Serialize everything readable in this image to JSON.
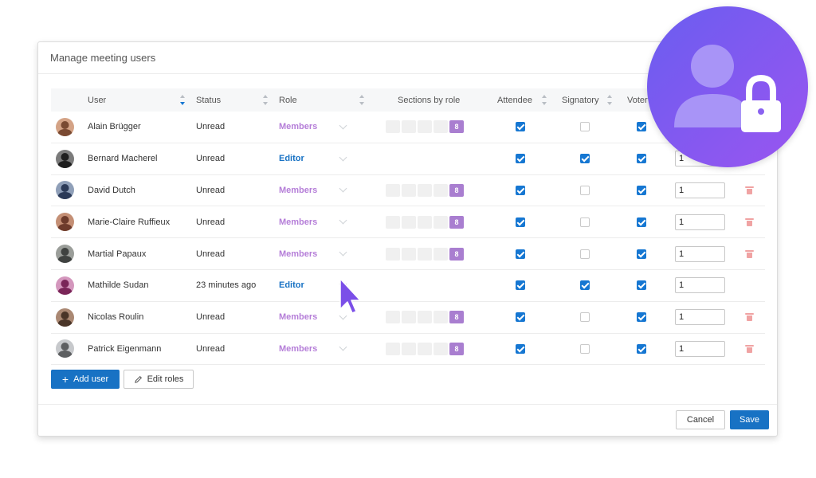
{
  "dialog": {
    "title": "Manage meeting users"
  },
  "columns": {
    "user": "User",
    "status": "Status",
    "role": "Role",
    "sections": "Sections by role",
    "attendee": "Attendee",
    "signatory": "Signatory",
    "voter": "Voter"
  },
  "rows": [
    {
      "name": "Alain Brügger",
      "status": "Unread",
      "role": "Members",
      "sections": "8",
      "attendee": true,
      "signatory": false,
      "voter": true,
      "weight": "",
      "deletable": false
    },
    {
      "name": "Bernard Macherel",
      "status": "Unread",
      "role": "Editor",
      "sections": "",
      "attendee": true,
      "signatory": true,
      "voter": true,
      "weight": "1",
      "deletable": false
    },
    {
      "name": "David Dutch",
      "status": "Unread",
      "role": "Members",
      "sections": "8",
      "attendee": true,
      "signatory": false,
      "voter": true,
      "weight": "1",
      "deletable": true
    },
    {
      "name": "Marie-Claire Ruffieux",
      "status": "Unread",
      "role": "Members",
      "sections": "8",
      "attendee": true,
      "signatory": false,
      "voter": true,
      "weight": "1",
      "deletable": true
    },
    {
      "name": "Martial Papaux",
      "status": "Unread",
      "role": "Members",
      "sections": "8",
      "attendee": true,
      "signatory": false,
      "voter": true,
      "weight": "1",
      "deletable": true
    },
    {
      "name": "Mathilde Sudan",
      "status": "23 minutes ago",
      "role": "Editor",
      "sections": "",
      "attendee": true,
      "signatory": true,
      "voter": true,
      "weight": "1",
      "deletable": false
    },
    {
      "name": "Nicolas Roulin",
      "status": "Unread",
      "role": "Members",
      "sections": "8",
      "attendee": true,
      "signatory": false,
      "voter": true,
      "weight": "1",
      "deletable": true
    },
    {
      "name": "Patrick Eigenmann",
      "status": "Unread",
      "role": "Members",
      "sections": "8",
      "attendee": true,
      "signatory": false,
      "voter": true,
      "weight": "1",
      "deletable": true
    }
  ],
  "actions": {
    "add_user": "Add user",
    "edit_roles": "Edit roles"
  },
  "footer": {
    "cancel": "Cancel",
    "save": "Save"
  },
  "icons": {
    "badge": "user-lock-icon",
    "cursor": "pointer-cursor-icon"
  },
  "colors": {
    "primary": "#1872c4",
    "members": "#b57ed8",
    "editor": "#1872c4",
    "badge_start": "#6a5df0",
    "badge_end": "#9a55f0"
  }
}
